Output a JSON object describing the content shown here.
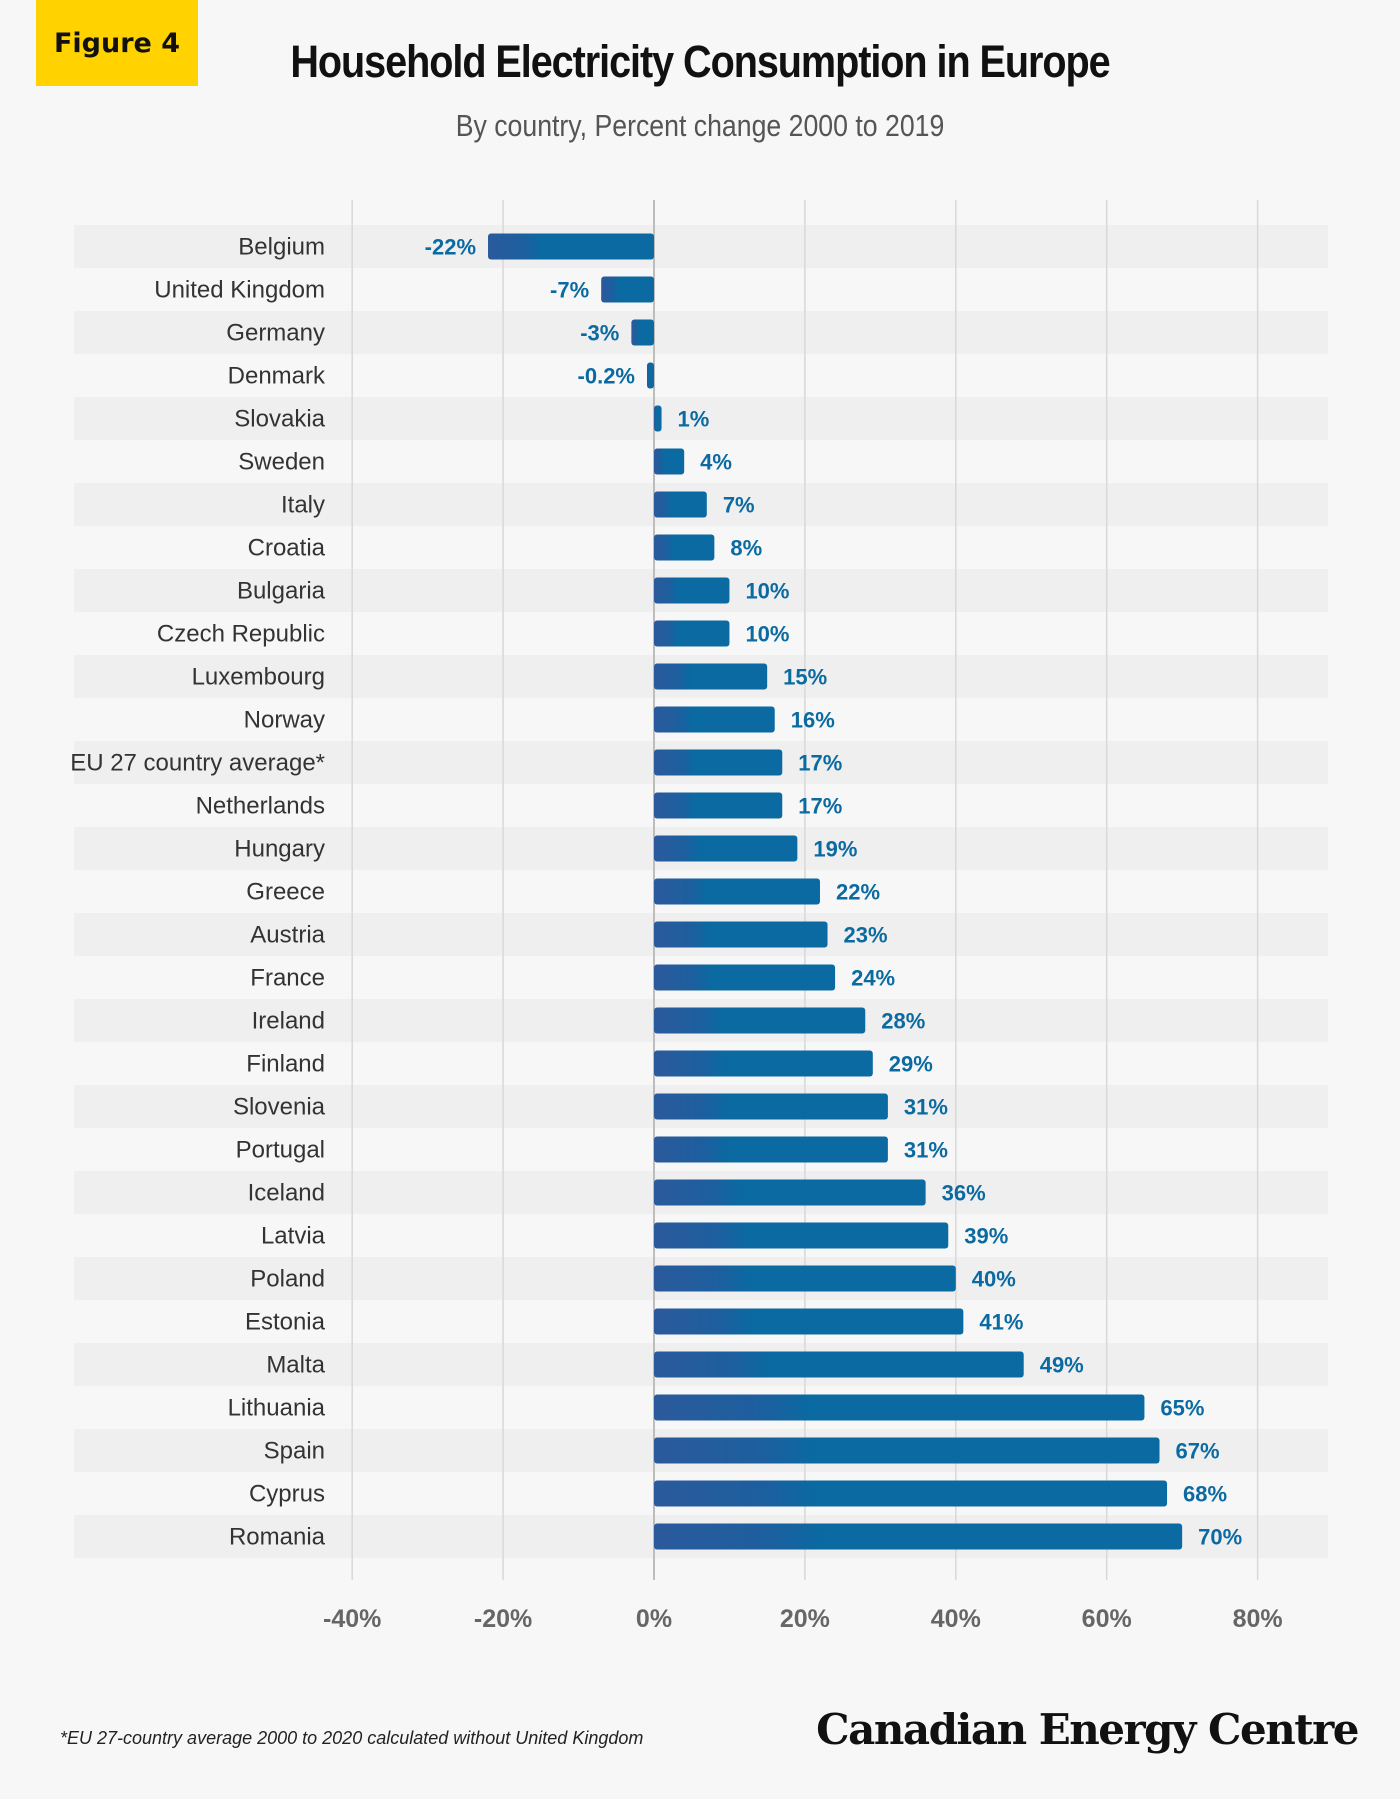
{
  "figure_label": "Figure 4",
  "footnote": "*EU 27-country average 2000 to 2020 calculated without United Kingdom",
  "logo_text": "Canadian Energy Centre",
  "colors": {
    "bar": "#0a6aa1",
    "bar_dark": "#2b5a9c",
    "label": "#0a6aa1",
    "badge": "#ffd200",
    "stripe": "#efefef",
    "background": "#f7f7f7"
  },
  "chart_data": {
    "type": "bar",
    "orientation": "horizontal",
    "title": "Household Electricity Consumption in Europe",
    "subtitle": "By country, Percent change 2000 to 2019",
    "xlim": [
      -40,
      90
    ],
    "xticks": [
      -40,
      -20,
      0,
      20,
      40,
      60,
      80
    ],
    "tick_labels": [
      "-40%",
      "-20%",
      "0%",
      "20%",
      "40%",
      "60%",
      "80%"
    ],
    "grid": "vertical",
    "categories": [
      "Belgium",
      "United Kingdom",
      "Germany",
      "Denmark",
      "Slovakia",
      "Sweden",
      "Italy",
      "Croatia",
      "Bulgaria",
      "Czech Republic",
      "Luxembourg",
      "Norway",
      "EU 27 country average*",
      "Netherlands",
      "Hungary",
      "Greece",
      "Austria",
      "France",
      "Ireland",
      "Finland",
      "Slovenia",
      "Portugal",
      "Iceland",
      "Latvia",
      "Poland",
      "Estonia",
      "Malta",
      "Lithuania",
      "Spain",
      "Cyprus",
      "Romania"
    ],
    "values": [
      -22,
      -7,
      -3,
      -0.2,
      1,
      4,
      7,
      8,
      10,
      10,
      15,
      16,
      17,
      17,
      19,
      22,
      23,
      24,
      28,
      29,
      31,
      31,
      36,
      39,
      40,
      41,
      49,
      65,
      67,
      68,
      70
    ],
    "data_labels": [
      "-22%",
      "-7%",
      "-3%",
      "-0.2%",
      "1%",
      "4%",
      "7%",
      "8%",
      "10%",
      "10%",
      "15%",
      "16%",
      "17%",
      "17%",
      "19%",
      "22%",
      "23%",
      "24%",
      "28%",
      "29%",
      "31%",
      "31%",
      "36%",
      "39%",
      "40%",
      "41%",
      "49%",
      "65%",
      "67%",
      "68%",
      "70%"
    ]
  }
}
